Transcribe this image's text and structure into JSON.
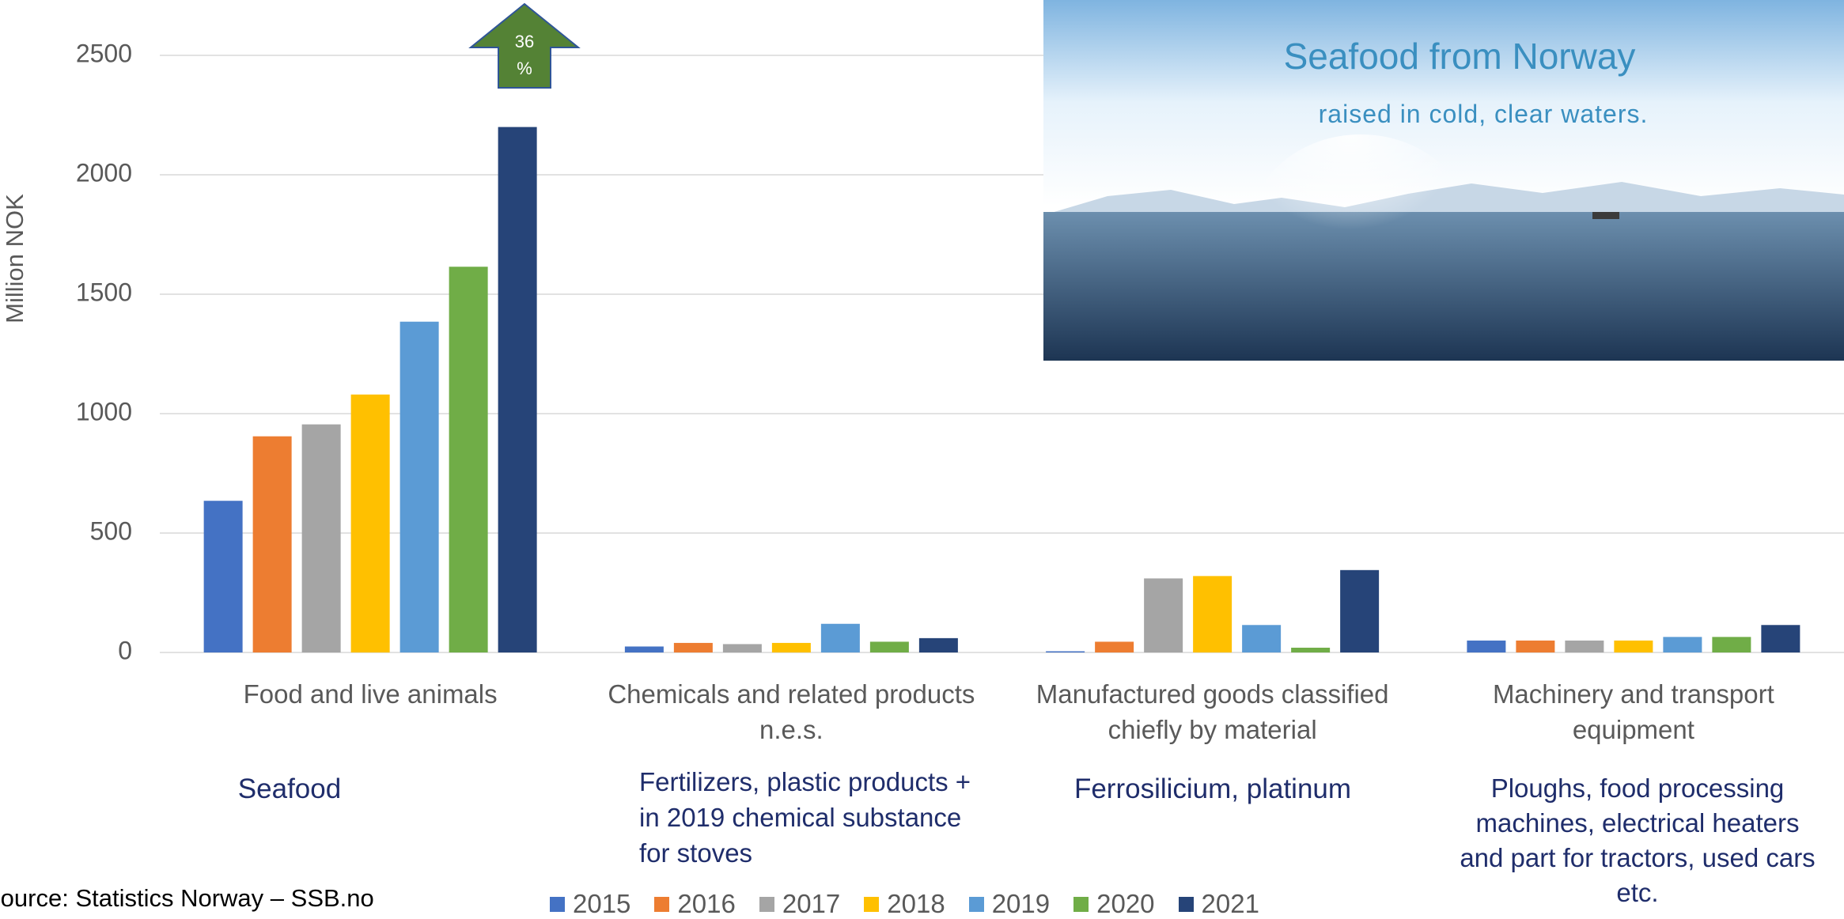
{
  "chart_data": {
    "type": "bar",
    "y_label": "Million NOK",
    "categories": [
      "Food and live animals",
      "Chemicals and related products n.e.s.",
      "Manufactured goods classified chiefly by material",
      "Machinery and transport equipment"
    ],
    "series": [
      {
        "name": "2015",
        "color": "#4472c4",
        "values": [
          635,
          25,
          5,
          50
        ]
      },
      {
        "name": "2016",
        "color": "#ed7d31",
        "values": [
          905,
          40,
          45,
          50
        ]
      },
      {
        "name": "2017",
        "color": "#a5a5a5",
        "values": [
          955,
          35,
          310,
          50
        ]
      },
      {
        "name": "2018",
        "color": "#ffc000",
        "values": [
          1080,
          40,
          320,
          50
        ]
      },
      {
        "name": "2019",
        "color": "#5b9bd5",
        "values": [
          1385,
          120,
          115,
          65
        ]
      },
      {
        "name": "2020",
        "color": "#70ad47",
        "values": [
          1615,
          45,
          20,
          65
        ]
      },
      {
        "name": "2021",
        "color": "#264478",
        "values": [
          2200,
          60,
          345,
          115
        ]
      }
    ],
    "ylim": [
      0,
      2500
    ],
    "yticks": [
      0,
      500,
      1000,
      1500,
      2000,
      2500
    ],
    "grid": true,
    "legend": "bottom",
    "growth_arrow": "36 %",
    "annotations": [
      "Seafood",
      "Fertilizers, plastic products + in 2019 chemical substance for stoves",
      "Ferrosilicium, platinum",
      "Ploughs, food processing machines, electrical heaters and part for tractors, used cars etc."
    ],
    "source": "Source: Statistics Norway – SSB.no",
    "image_title": "Seafood from Norway",
    "image_subtitle": "raised in cold, clear waters."
  }
}
